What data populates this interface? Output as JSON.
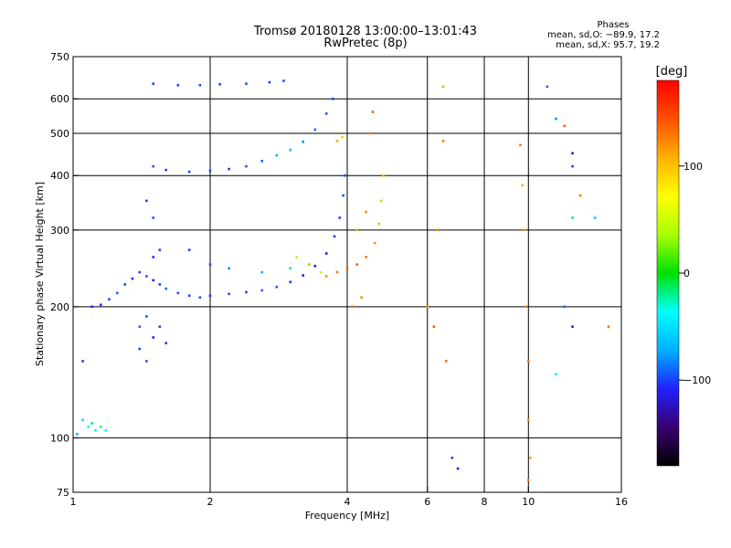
{
  "header": {
    "title_line1": "Tromsø 20180128 13:00:00–13:01:43",
    "title_line2": "RwPretec (8p)"
  },
  "phase_box": {
    "title": "Phases",
    "line_o": "mean, sd,O: −89.9, 17.2",
    "line_x": "mean, sd,X:  95.7, 19.2"
  },
  "colorbar": {
    "unit_label": "[deg]",
    "ticks": [
      {
        "value": 100,
        "label": "100"
      },
      {
        "value": 0,
        "label": "0"
      },
      {
        "value": -100,
        "label": "−100"
      }
    ],
    "range": [
      -180,
      180
    ],
    "stops": [
      "#000000",
      "#3a0070",
      "#2020ff",
      "#00b0ff",
      "#00ffff",
      "#00e000",
      "#aaff00",
      "#ffff00",
      "#ffb000",
      "#ff5000",
      "#ff0000"
    ]
  },
  "chart_data": {
    "type": "scatter",
    "xlabel": "Frequency [MHz]",
    "ylabel": "Stationary phase Virtual Height [km]",
    "xscale": "log",
    "yscale": "log",
    "xlim": [
      1,
      16
    ],
    "ylim": [
      75,
      750
    ],
    "xticks": [
      {
        "value": 1,
        "label": "1"
      },
      {
        "value": 2,
        "label": "2"
      },
      {
        "value": 4,
        "label": "4"
      },
      {
        "value": 6,
        "label": "6"
      },
      {
        "value": 8,
        "label": "8"
      },
      {
        "value": 10,
        "label": "10"
      },
      {
        "value": 16,
        "label": "16"
      }
    ],
    "yticks": [
      {
        "value": 75,
        "label": "75"
      },
      {
        "value": 100,
        "label": "100"
      },
      {
        "value": 200,
        "label": "200"
      },
      {
        "value": 300,
        "label": "300"
      },
      {
        "value": 400,
        "label": "400"
      },
      {
        "value": 500,
        "label": "500"
      },
      {
        "value": 600,
        "label": "600"
      },
      {
        "value": 750,
        "label": "750"
      }
    ],
    "grid_x": [
      2,
      4,
      6,
      8,
      10
    ],
    "grid_y": [
      100,
      200,
      300,
      400,
      500,
      600
    ],
    "series": [
      {
        "points": [
          [
            1.02,
            102,
            -70
          ],
          [
            1.05,
            110,
            -50
          ],
          [
            1.08,
            106,
            -40
          ],
          [
            1.1,
            108,
            -20
          ],
          [
            1.12,
            104,
            -30
          ],
          [
            1.15,
            106,
            -25
          ],
          [
            1.18,
            104,
            -40
          ],
          [
            1.05,
            150,
            -100
          ],
          [
            1.1,
            200,
            -110
          ],
          [
            1.15,
            202,
            -105
          ],
          [
            1.2,
            208,
            -100
          ],
          [
            1.25,
            215,
            -95
          ],
          [
            1.3,
            225,
            -100
          ],
          [
            1.35,
            232,
            -105
          ],
          [
            1.4,
            240,
            -100
          ],
          [
            1.45,
            235,
            -95
          ],
          [
            1.5,
            230,
            -110
          ],
          [
            1.55,
            225,
            -100
          ],
          [
            1.6,
            220,
            -90
          ],
          [
            1.7,
            215,
            -95
          ],
          [
            1.8,
            212,
            -100
          ],
          [
            1.9,
            210,
            -95
          ],
          [
            2.0,
            212,
            -100
          ],
          [
            2.2,
            214,
            -95
          ],
          [
            2.4,
            216,
            -100
          ],
          [
            2.6,
            218,
            -90
          ],
          [
            2.8,
            222,
            -95
          ],
          [
            3.0,
            228,
            -100
          ],
          [
            3.2,
            236,
            -110
          ],
          [
            3.4,
            248,
            -120
          ],
          [
            3.6,
            265,
            -115
          ],
          [
            3.75,
            290,
            -100
          ],
          [
            3.85,
            320,
            -100
          ],
          [
            3.92,
            360,
            -100
          ],
          [
            3.95,
            400,
            -95
          ]
        ]
      },
      {
        "points": [
          [
            1.5,
            420,
            -95
          ],
          [
            1.6,
            412,
            -100
          ],
          [
            1.8,
            408,
            -100
          ],
          [
            2.0,
            410,
            -95
          ],
          [
            2.2,
            414,
            -100
          ],
          [
            2.4,
            420,
            -95
          ],
          [
            2.6,
            432,
            -90
          ],
          [
            2.8,
            445,
            -70
          ],
          [
            3.0,
            458,
            -65
          ],
          [
            3.2,
            478,
            -80
          ],
          [
            3.4,
            510,
            -90
          ],
          [
            3.6,
            555,
            -95
          ],
          [
            3.72,
            600,
            -100
          ],
          [
            1.5,
            650,
            -100
          ],
          [
            1.7,
            645,
            -100
          ],
          [
            1.9,
            645,
            -95
          ],
          [
            2.1,
            648,
            -100
          ],
          [
            2.4,
            650,
            -95
          ],
          [
            2.7,
            655,
            -100
          ],
          [
            2.9,
            660,
            -95
          ]
        ]
      },
      {
        "points": [
          [
            1.4,
            160,
            -100
          ],
          [
            1.45,
            150,
            -95
          ],
          [
            1.5,
            170,
            -110
          ],
          [
            1.55,
            180,
            -100
          ],
          [
            1.6,
            165,
            -100
          ],
          [
            1.4,
            180,
            -90
          ],
          [
            1.45,
            190,
            -95
          ],
          [
            1.5,
            260,
            -105
          ],
          [
            1.55,
            270,
            -100
          ],
          [
            1.5,
            320,
            -95
          ],
          [
            1.45,
            350,
            -100
          ],
          [
            1.8,
            270,
            -100
          ],
          [
            2.0,
            250,
            -95
          ],
          [
            2.2,
            245,
            -80
          ],
          [
            2.6,
            240,
            -70
          ],
          [
            3.0,
            245,
            -55
          ],
          [
            3.1,
            260,
            40
          ],
          [
            3.3,
            250,
            20
          ],
          [
            3.5,
            240,
            50
          ]
        ]
      },
      {
        "points": [
          [
            3.6,
            235,
            120
          ],
          [
            3.8,
            240,
            130
          ],
          [
            4.0,
            245,
            140
          ],
          [
            4.2,
            250,
            135
          ],
          [
            4.4,
            260,
            130
          ],
          [
            4.6,
            280,
            120
          ],
          [
            4.7,
            310,
            110
          ],
          [
            4.75,
            350,
            100
          ],
          [
            4.8,
            400,
            105
          ],
          [
            4.2,
            300,
            110
          ],
          [
            4.4,
            330,
            120
          ],
          [
            4.5,
            500,
            130
          ],
          [
            4.55,
            560,
            140
          ],
          [
            3.8,
            480,
            110
          ],
          [
            3.9,
            490,
            95
          ],
          [
            4.1,
            200,
            130
          ],
          [
            4.3,
            210,
            120
          ]
        ]
      },
      {
        "points": [
          [
            6.0,
            200,
            120
          ],
          [
            6.2,
            180,
            140
          ],
          [
            6.3,
            300,
            120
          ],
          [
            6.5,
            640,
            110
          ],
          [
            6.5,
            480,
            130
          ],
          [
            6.6,
            150,
            130
          ],
          [
            6.8,
            90,
            -100
          ],
          [
            7.0,
            85,
            -110
          ],
          [
            9.6,
            470,
            130
          ],
          [
            9.7,
            380,
            110
          ],
          [
            9.8,
            300,
            120
          ],
          [
            9.9,
            200,
            125
          ],
          [
            10.0,
            150,
            130
          ],
          [
            10.0,
            110,
            120
          ],
          [
            10.1,
            90,
            110
          ],
          [
            10.0,
            80,
            130
          ],
          [
            11.0,
            640,
            -90
          ],
          [
            11.5,
            540,
            -80
          ],
          [
            12.0,
            520,
            140
          ],
          [
            12.5,
            450,
            -110
          ],
          [
            12.5,
            420,
            -100
          ],
          [
            12.5,
            320,
            -20
          ],
          [
            13.0,
            360,
            130
          ],
          [
            14.0,
            320,
            -60
          ],
          [
            15.0,
            180,
            130
          ],
          [
            12.0,
            200,
            -90
          ],
          [
            12.5,
            180,
            -110
          ],
          [
            11.5,
            140,
            -40
          ]
        ]
      }
    ]
  }
}
